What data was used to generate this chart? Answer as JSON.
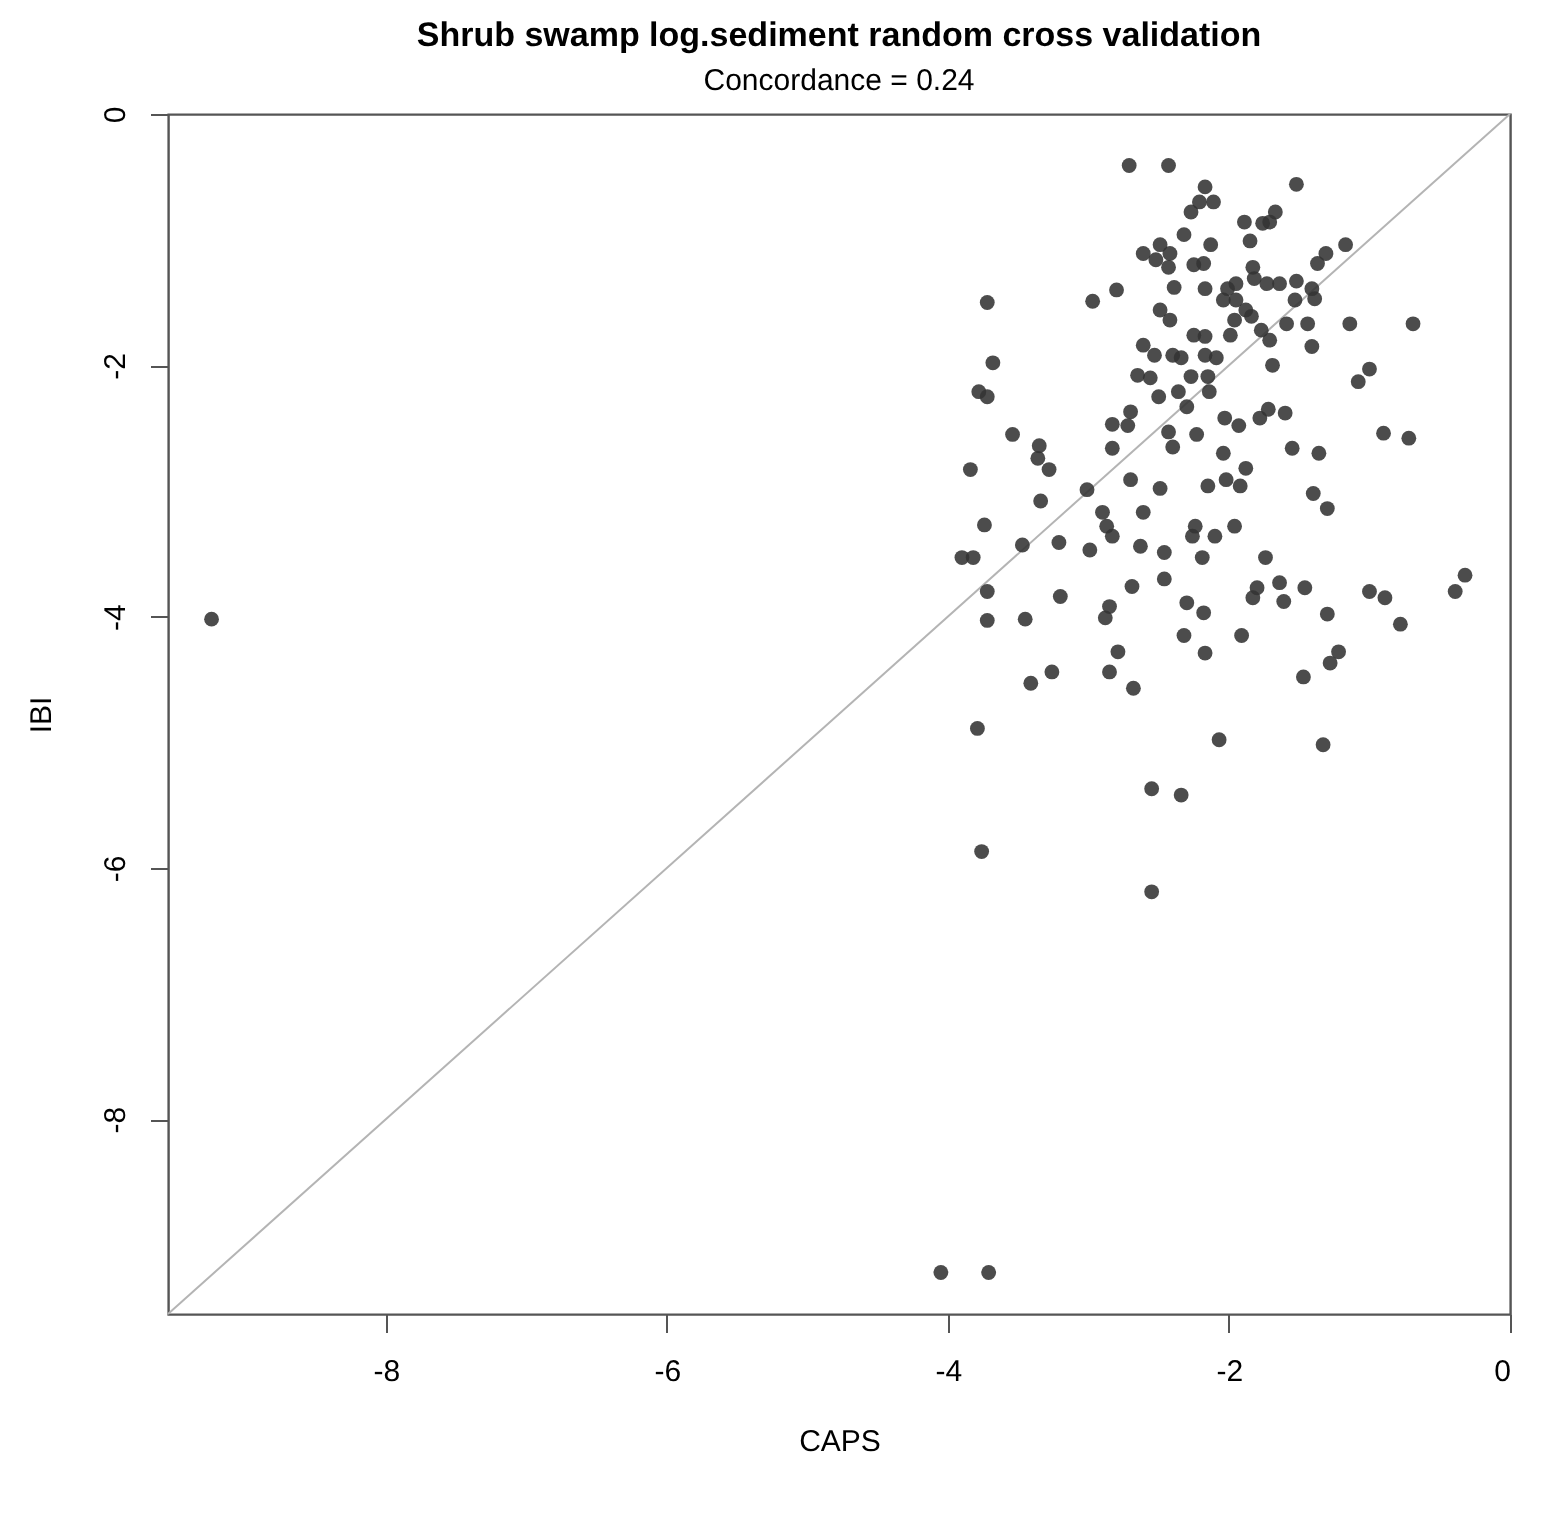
{
  "chart_data": {
    "type": "scatter",
    "title": "Shrub swamp log.sediment random cross validation",
    "subtitle": "Concordance = 0.24",
    "xlabel": "CAPS",
    "ylabel": "IBI",
    "xlim": [
      -9.55,
      0
    ],
    "ylim": [
      -9.55,
      0
    ],
    "xticks": [
      -8,
      -6,
      -4,
      -2,
      0
    ],
    "yticks": [
      -8,
      -6,
      -4,
      -2,
      0
    ],
    "grid": false,
    "marker": "circle",
    "series": [
      {
        "type": "scatter",
        "color": "#333333",
        "x": [
          -2.71,
          -2.43,
          -2.17,
          -1.52,
          -2.21,
          -2.11,
          -2.27,
          -1.89,
          -1.76,
          -1.67,
          -1.71,
          -2.32,
          -1.85,
          -2.61,
          -2.49,
          -2.42,
          -2.13,
          -2.52,
          -2.43,
          -2.25,
          -2.18,
          -1.83,
          -1.31,
          -1.37,
          -1.17,
          -2.39,
          -2.17,
          -2.01,
          -1.95,
          -1.82,
          -1.73,
          -1.64,
          -1.52,
          -1.41,
          -3.72,
          -2.97,
          -2.8,
          -2.49,
          -2.42,
          -2.04,
          -1.95,
          -1.88,
          -1.53,
          -1.39,
          -1.96,
          -1.84,
          -1.77,
          -1.59,
          -1.44,
          -1.14,
          -0.69,
          -1.99,
          -2.25,
          -2.17,
          -1.71,
          -1.41,
          -2.61,
          -2.53,
          -2.4,
          -2.34,
          -2.17,
          -2.09,
          -3.68,
          -1.69,
          -1.0,
          -1.08,
          -2.65,
          -2.56,
          -2.27,
          -2.15,
          -3.78,
          -3.72,
          -2.5,
          -2.36,
          -2.14,
          -2.3,
          -2.7,
          -2.83,
          -2.72,
          -2.43,
          -2.23,
          -2.03,
          -1.93,
          -1.78,
          -1.72,
          -1.6,
          -3.54,
          -3.35,
          -3.36,
          -3.28,
          -3.84,
          -2.83,
          -2.4,
          -2.04,
          -1.55,
          -1.36,
          -0.9,
          -0.72,
          -1.88,
          -2.7,
          -3.01,
          -2.49,
          -2.15,
          -2.02,
          -1.92,
          -1.4,
          -3.34,
          -2.9,
          -2.87,
          -2.83,
          -2.61,
          -2.24,
          -2.26,
          -2.1,
          -1.96,
          -1.3,
          -3.74,
          -3.47,
          -3.21,
          -2.99,
          -2.63,
          -2.46,
          -2.19,
          -1.74,
          -3.9,
          -3.82,
          -3.72,
          -3.72,
          -3.45,
          -3.2,
          -2.69,
          -2.46,
          -2.85,
          -2.88,
          -2.3,
          -2.18,
          -2.32,
          -1.91,
          -2.17,
          -1.8,
          -1.83,
          -1.64,
          -1.61,
          -1.46,
          -1.3,
          -1.0,
          -0.89,
          -0.78,
          -0.39,
          -0.32,
          -2.79,
          -2.85,
          -2.68,
          -3.26,
          -3.41,
          -1.22,
          -1.28,
          -1.47,
          -3.79,
          -2.07,
          -1.33,
          -2.55,
          -2.34,
          -3.76,
          -2.55,
          -4.05,
          -3.71,
          -9.24
        ],
        "values": [
          -0.41,
          -0.41,
          -0.58,
          -0.56,
          -0.7,
          -0.7,
          -0.78,
          -0.86,
          -0.87,
          -0.78,
          -0.86,
          -0.96,
          -1.01,
          -1.11,
          -1.04,
          -1.11,
          -1.04,
          -1.16,
          -1.22,
          -1.2,
          -1.19,
          -1.22,
          -1.11,
          -1.19,
          -1.04,
          -1.38,
          -1.39,
          -1.39,
          -1.35,
          -1.31,
          -1.35,
          -1.35,
          -1.33,
          -1.39,
          -1.5,
          -1.49,
          -1.4,
          -1.56,
          -1.64,
          -1.48,
          -1.48,
          -1.56,
          -1.48,
          -1.47,
          -1.64,
          -1.61,
          -1.72,
          -1.67,
          -1.67,
          -1.67,
          -1.67,
          -1.76,
          -1.76,
          -1.77,
          -1.8,
          -1.85,
          -1.84,
          -1.92,
          -1.92,
          -1.94,
          -1.92,
          -1.94,
          -1.98,
          -2.0,
          -2.03,
          -2.13,
          -2.08,
          -2.1,
          -2.09,
          -2.09,
          -2.21,
          -2.25,
          -2.25,
          -2.21,
          -2.21,
          -2.33,
          -2.37,
          -2.47,
          -2.48,
          -2.53,
          -2.55,
          -2.42,
          -2.48,
          -2.42,
          -2.35,
          -2.38,
          -2.55,
          -2.64,
          -2.74,
          -2.83,
          -2.83,
          -2.66,
          -2.65,
          -2.7,
          -2.66,
          -2.7,
          -2.54,
          -2.58,
          -2.82,
          -2.91,
          -2.99,
          -2.98,
          -2.96,
          -2.91,
          -2.96,
          -3.02,
          -3.08,
          -3.17,
          -3.28,
          -3.36,
          -3.17,
          -3.28,
          -3.36,
          -3.36,
          -3.28,
          -3.14,
          -3.27,
          -3.43,
          -3.41,
          -3.47,
          -3.44,
          -3.49,
          -3.53,
          -3.53,
          -3.53,
          -3.53,
          -3.8,
          -4.03,
          -4.02,
          -3.84,
          -3.76,
          -3.7,
          -3.92,
          -4.01,
          -3.89,
          -3.97,
          -4.15,
          -4.15,
          -4.29,
          -3.77,
          -3.85,
          -3.73,
          -3.88,
          -3.77,
          -3.98,
          -3.8,
          -3.85,
          -4.06,
          -3.8,
          -3.67,
          -4.28,
          -4.44,
          -4.57,
          -4.44,
          -4.53,
          -4.28,
          -4.37,
          -4.48,
          -4.89,
          -4.98,
          -5.02,
          -5.37,
          -5.42,
          -5.87,
          -6.19,
          -9.22,
          -9.22,
          -4.02
        ]
      },
      {
        "type": "line",
        "color": "#b4b4b4",
        "marker": "none",
        "x": [
          -9.55,
          0
        ],
        "values": [
          -9.55,
          0
        ]
      }
    ]
  }
}
